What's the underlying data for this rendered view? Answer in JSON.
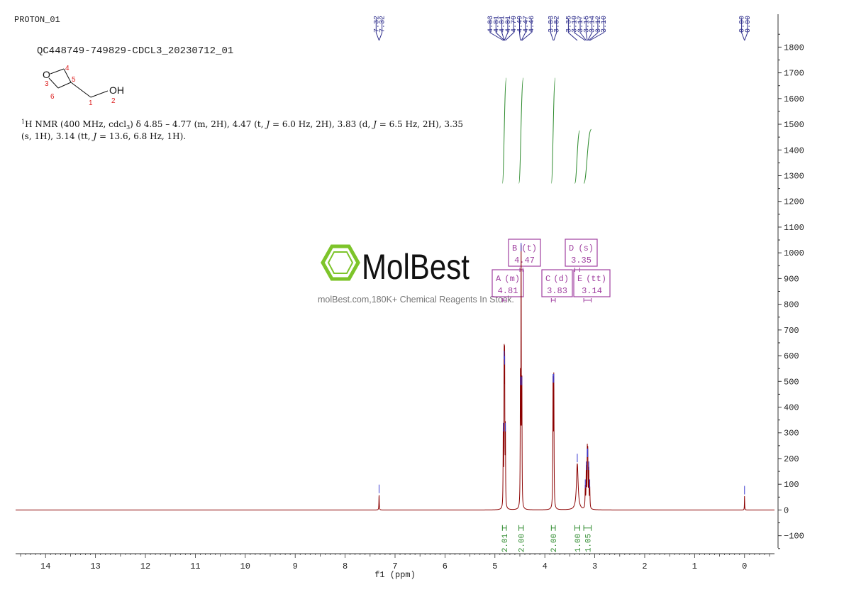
{
  "header": {
    "experiment": "PROTON_01",
    "sample": "QC448749-749829-CDCL3_20230712_01"
  },
  "molecule": {
    "atoms": [
      {
        "label": "O",
        "number": "3"
      },
      {
        "label": "",
        "number": "4"
      },
      {
        "label": "",
        "number": "5"
      },
      {
        "label": "",
        "number": "6"
      },
      {
        "label": "",
        "number": "1"
      },
      {
        "label": "OH",
        "number": "2"
      }
    ]
  },
  "nmr_text": {
    "sup": "1",
    "line1_main": "H NMR (400 MHz, cdcl",
    "line1_sub": "3",
    "line1_a": ") δ 4.85 – 4.77 (m, 2H), 4.47 (t, ",
    "j": "J",
    "line1_b": " = 6.0 Hz, 2H), 3.83 (d, ",
    "line1_c": " = 6.5 Hz, 2H), 3.35",
    "line2_a": "(s, 1H), 3.14 (tt, ",
    "line2_b": " = 13.6, 6.8 Hz, 1H)."
  },
  "watermark": {
    "brand": "MolBest",
    "tagline": "molBest.com,180K+ Chemical Reagents In Stock."
  },
  "colors": {
    "spectrum": "#8b0000",
    "peak_label": "#2a2a8a",
    "integral": "#2e8b2e",
    "multiplet": "#a040a0",
    "axis": "#333333",
    "logo_green": "#7dc42a"
  },
  "chart_data": {
    "type": "line",
    "xlabel": "f1 (ppm)",
    "xlim": [
      14.6,
      -0.6
    ],
    "x_ticks": [
      14,
      13,
      12,
      11,
      10,
      9,
      8,
      7,
      6,
      5,
      4,
      3,
      2,
      1,
      0
    ],
    "ylim": [
      -170,
      1870
    ],
    "y_ticks": [
      -100,
      0,
      100,
      200,
      300,
      400,
      500,
      600,
      700,
      800,
      900,
      1000,
      1100,
      1200,
      1300,
      1400,
      1500,
      1600,
      1700,
      1800
    ],
    "peaks": [
      {
        "ppm": 7.32,
        "height": 60,
        "width": 0.004
      },
      {
        "ppm": 4.833,
        "height": 300,
        "width": 0.004
      },
      {
        "ppm": 4.815,
        "height": 580,
        "width": 0.004
      },
      {
        "ppm": 4.805,
        "height": 560,
        "width": 0.004
      },
      {
        "ppm": 4.79,
        "height": 300,
        "width": 0.004
      },
      {
        "ppm": 4.49,
        "height": 480,
        "width": 0.004
      },
      {
        "ppm": 4.475,
        "height": 1000,
        "width": 0.004
      },
      {
        "ppm": 4.46,
        "height": 480,
        "width": 0.004
      },
      {
        "ppm": 3.835,
        "height": 490,
        "width": 0.005
      },
      {
        "ppm": 3.82,
        "height": 490,
        "width": 0.005
      },
      {
        "ppm": 3.35,
        "height": 180,
        "width": 0.02
      },
      {
        "ppm": 3.19,
        "height": 80,
        "width": 0.005
      },
      {
        "ppm": 3.17,
        "height": 150,
        "width": 0.005
      },
      {
        "ppm": 3.15,
        "height": 200,
        "width": 0.005
      },
      {
        "ppm": 3.14,
        "height": 200,
        "width": 0.005
      },
      {
        "ppm": 3.12,
        "height": 150,
        "width": 0.005
      },
      {
        "ppm": 3.1,
        "height": 80,
        "width": 0.005
      },
      {
        "ppm": 0.0,
        "height": 55,
        "width": 0.003
      }
    ],
    "peak_labels": [
      {
        "text": "7.32",
        "ppm": 7.32
      },
      {
        "text": "7.32",
        "ppm": 7.32
      },
      {
        "text": "4.83",
        "ppm": 4.83
      },
      {
        "text": "4.81",
        "ppm": 4.81
      },
      {
        "text": "4.81",
        "ppm": 4.81
      },
      {
        "text": "4.81",
        "ppm": 4.81
      },
      {
        "text": "4.79",
        "ppm": 4.79
      },
      {
        "text": "4.49",
        "ppm": 4.49
      },
      {
        "text": "4.47",
        "ppm": 4.47
      },
      {
        "text": "4.46",
        "ppm": 4.46
      },
      {
        "text": "3.83",
        "ppm": 3.83
      },
      {
        "text": "3.82",
        "ppm": 3.82
      },
      {
        "text": "3.35",
        "ppm": 3.35
      },
      {
        "text": "3.19",
        "ppm": 3.19
      },
      {
        "text": "3.17",
        "ppm": 3.17
      },
      {
        "text": "3.15",
        "ppm": 3.15
      },
      {
        "text": "3.14",
        "ppm": 3.14
      },
      {
        "text": "3.12",
        "ppm": 3.12
      },
      {
        "text": "3.10",
        "ppm": 3.1
      },
      {
        "text": "0.00",
        "ppm": 0.0
      },
      {
        "text": "0.00",
        "ppm": 0.0
      }
    ],
    "integrals": [
      {
        "from": 4.85,
        "to": 4.77,
        "value": "2.01"
      },
      {
        "from": 4.52,
        "to": 4.43,
        "value": "2.00"
      },
      {
        "from": 3.87,
        "to": 3.79,
        "value": "2.00"
      },
      {
        "from": 3.4,
        "to": 3.3,
        "value": "1.00"
      },
      {
        "from": 3.22,
        "to": 3.07,
        "value": "1.05"
      }
    ],
    "multiplets": [
      {
        "letter": "A",
        "type": "(m)",
        "shift": "4.81",
        "from": 4.85,
        "to": 4.77
      },
      {
        "letter": "B",
        "type": "(t)",
        "shift": "4.47",
        "from": 4.5,
        "to": 4.44
      },
      {
        "letter": "C",
        "type": "(d)",
        "shift": "3.83",
        "from": 3.87,
        "to": 3.79
      },
      {
        "letter": "D",
        "type": "(s)",
        "shift": "3.35",
        "from": 3.4,
        "to": 3.3
      },
      {
        "letter": "E",
        "type": "(tt)",
        "shift": "3.14",
        "from": 3.22,
        "to": 3.07
      }
    ]
  }
}
